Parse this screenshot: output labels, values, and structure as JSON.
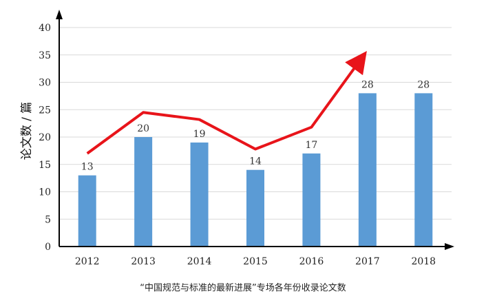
{
  "chart_data": {
    "type": "bar",
    "categories": [
      "2012",
      "2013",
      "2014",
      "2015",
      "2016",
      "2017",
      "2018"
    ],
    "values": [
      13,
      20,
      19,
      14,
      17,
      28,
      28
    ],
    "ylabel": "论文数 / 篇",
    "ylim": [
      0,
      40
    ],
    "yticks": [
      0,
      5,
      10,
      15,
      20,
      25,
      30,
      35,
      40
    ],
    "grid": true,
    "bar_color": "#5b9bd5",
    "trend_color": "#e8141a",
    "trend_values": [
      17,
      24.5,
      23.2,
      17.8,
      21.8,
      34.5
    ],
    "caption": "“中国规范与标准的最新进展”专场各年份收录论文数"
  }
}
